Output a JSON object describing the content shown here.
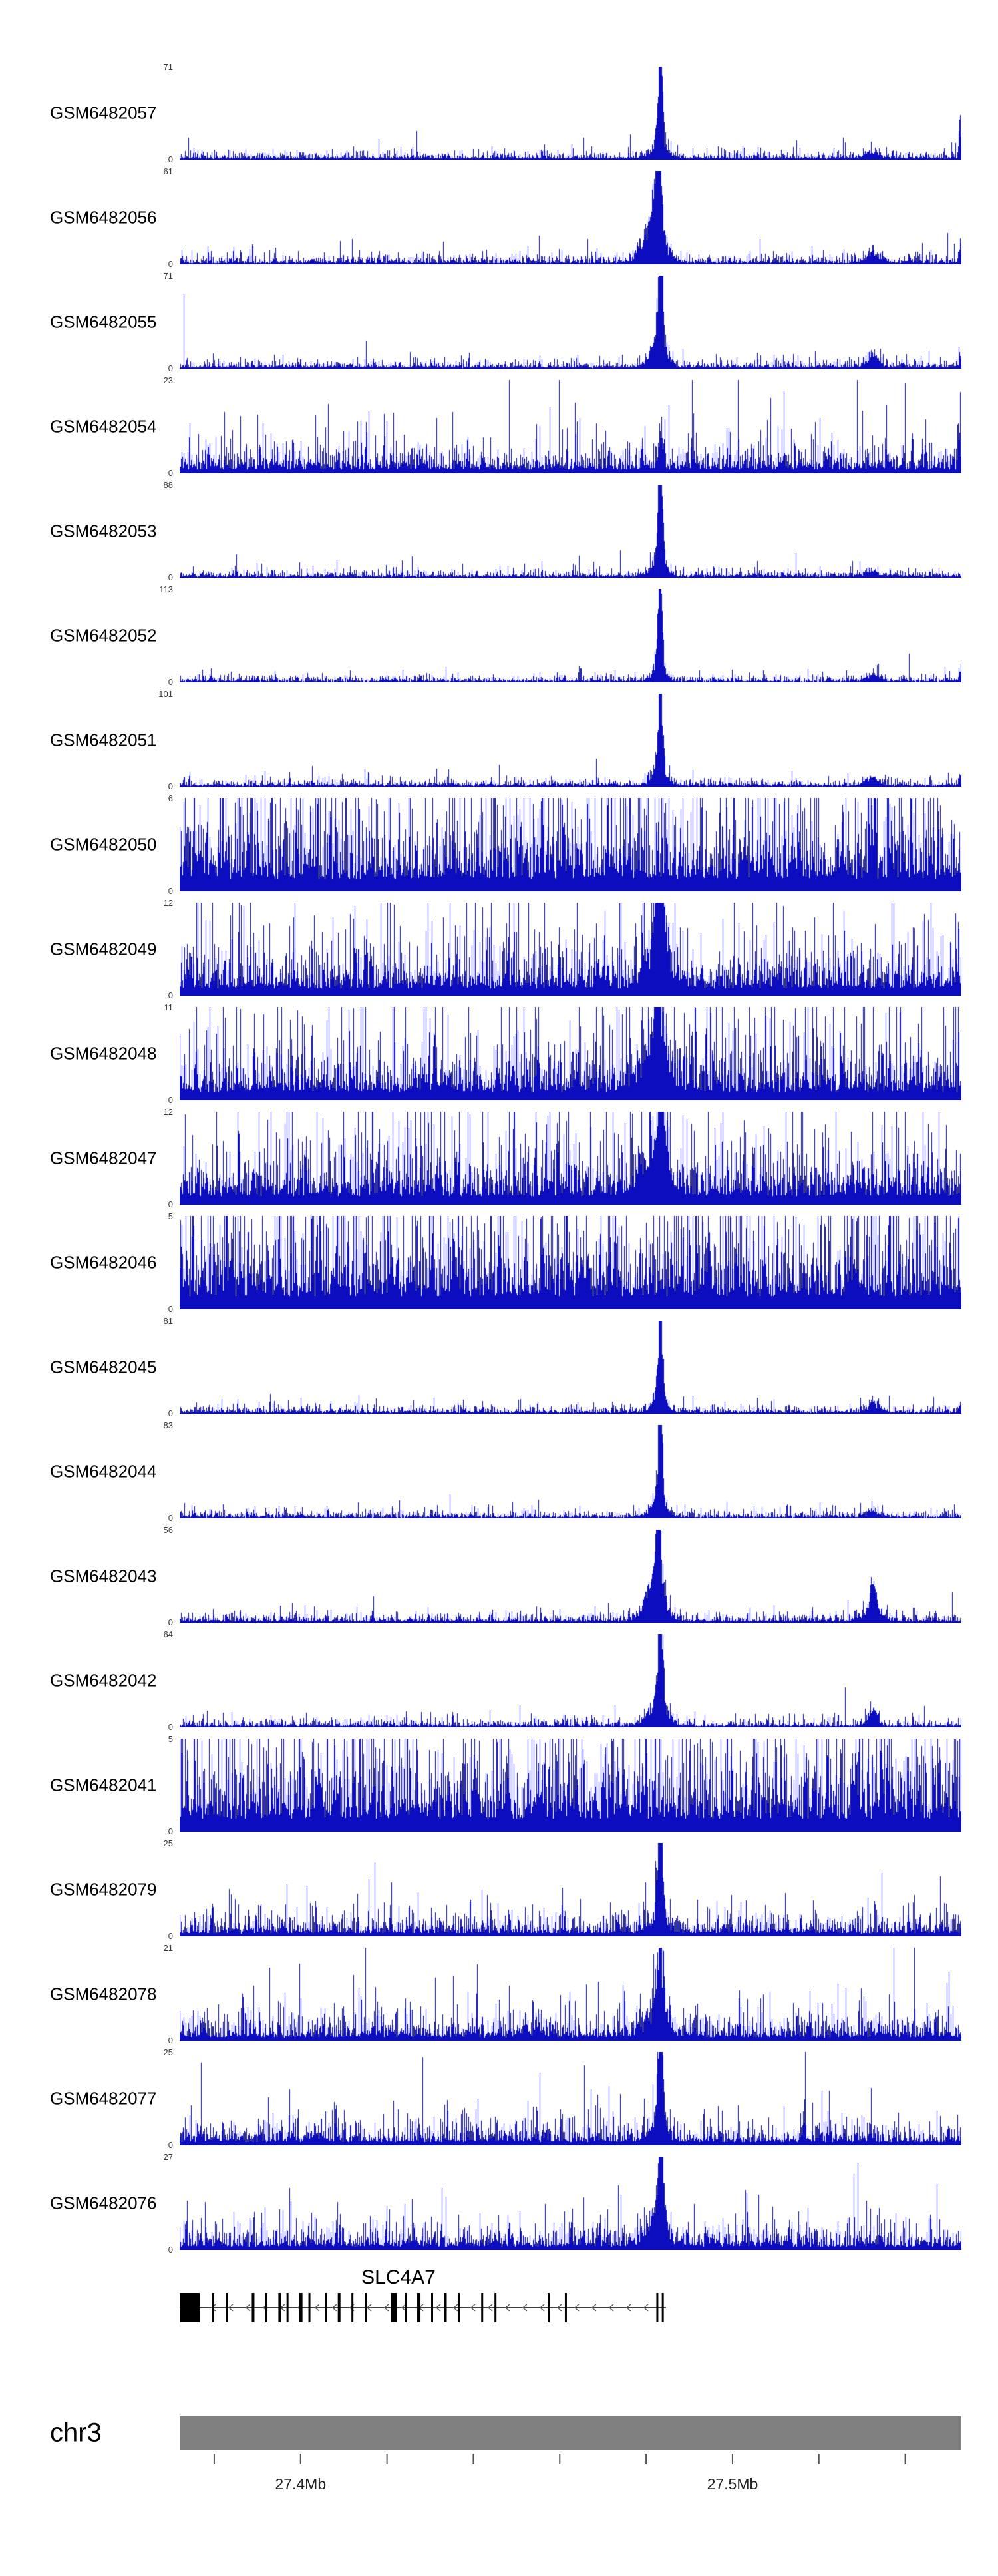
{
  "chart_data": {
    "type": "area",
    "subtype": "genome-browser-read-coverage-tracks",
    "signal_color": "#0d0dc0",
    "y_axis_zero": "0",
    "tracks": [
      {
        "label": "GSM6482057",
        "ymax": 71,
        "noise": 0.03,
        "peaks": [
          {
            "x": 0.615,
            "h": 1.0,
            "w": 0.0028
          },
          {
            "x": 0.613,
            "h": 0.18,
            "w": 0.01
          },
          {
            "x": 0.887,
            "h": 0.05,
            "w": 0.01
          },
          {
            "x": 0.9985,
            "h": 0.45,
            "w": 0.0015
          }
        ]
      },
      {
        "label": "GSM6482056",
        "ymax": 61,
        "noise": 0.035,
        "peaks": [
          {
            "x": 0.612,
            "h": 1.0,
            "w": 0.004
          },
          {
            "x": 0.606,
            "h": 0.45,
            "w": 0.013
          },
          {
            "x": 0.887,
            "h": 0.08,
            "w": 0.01
          },
          {
            "x": 0.9985,
            "h": 0.15,
            "w": 0.0015
          }
        ]
      },
      {
        "label": "GSM6482055",
        "ymax": 71,
        "noise": 0.03,
        "peaks": [
          {
            "x": 0.615,
            "h": 1.0,
            "w": 0.003
          },
          {
            "x": 0.613,
            "h": 0.28,
            "w": 0.01
          },
          {
            "x": 0.887,
            "h": 0.12,
            "w": 0.007
          },
          {
            "x": 0.9985,
            "h": 0.12,
            "w": 0.0015
          }
        ]
      },
      {
        "label": "GSM6482054",
        "ymax": 23,
        "noise": 0.115,
        "peaks": [
          {
            "x": 0.615,
            "h": 0.35,
            "w": 0.003
          },
          {
            "x": 0.9985,
            "h": 0.35,
            "w": 0.0015
          }
        ]
      },
      {
        "label": "GSM6482053",
        "ymax": 88,
        "noise": 0.028,
        "peaks": [
          {
            "x": 0.615,
            "h": 1.0,
            "w": 0.0028
          },
          {
            "x": 0.613,
            "h": 0.2,
            "w": 0.009
          },
          {
            "x": 0.887,
            "h": 0.05,
            "w": 0.008
          }
        ]
      },
      {
        "label": "GSM6482052",
        "ymax": 113,
        "noise": 0.025,
        "peaks": [
          {
            "x": 0.615,
            "h": 1.0,
            "w": 0.0026
          },
          {
            "x": 0.613,
            "h": 0.17,
            "w": 0.008
          },
          {
            "x": 0.887,
            "h": 0.06,
            "w": 0.009
          },
          {
            "x": 0.9985,
            "h": 0.1,
            "w": 0.0015
          }
        ]
      },
      {
        "label": "GSM6482051",
        "ymax": 101,
        "noise": 0.025,
        "peaks": [
          {
            "x": 0.615,
            "h": 1.0,
            "w": 0.0028
          },
          {
            "x": 0.613,
            "h": 0.19,
            "w": 0.009
          },
          {
            "x": 0.887,
            "h": 0.07,
            "w": 0.009
          },
          {
            "x": 0.9985,
            "h": 0.1,
            "w": 0.0015
          }
        ]
      },
      {
        "label": "GSM6482050",
        "ymax": 6,
        "noise": 0.38,
        "peaks": []
      },
      {
        "label": "GSM6482049",
        "ymax": 12,
        "noise": 0.22,
        "peaks": [
          {
            "x": 0.615,
            "h": 0.95,
            "w": 0.005
          },
          {
            "x": 0.61,
            "h": 0.35,
            "w": 0.014
          }
        ]
      },
      {
        "label": "GSM6482048",
        "ymax": 11,
        "noise": 0.26,
        "peaks": [
          {
            "x": 0.613,
            "h": 0.9,
            "w": 0.006
          },
          {
            "x": 0.603,
            "h": 0.3,
            "w": 0.018
          }
        ]
      },
      {
        "label": "GSM6482047",
        "ymax": 12,
        "noise": 0.26,
        "peaks": [
          {
            "x": 0.615,
            "h": 0.9,
            "w": 0.005
          },
          {
            "x": 0.605,
            "h": 0.3,
            "w": 0.018
          }
        ]
      },
      {
        "label": "GSM6482046",
        "ymax": 5,
        "noise": 0.4,
        "peaks": []
      },
      {
        "label": "GSM6482045",
        "ymax": 81,
        "noise": 0.028,
        "peaks": [
          {
            "x": 0.615,
            "h": 1.0,
            "w": 0.0028
          },
          {
            "x": 0.613,
            "h": 0.2,
            "w": 0.009
          },
          {
            "x": 0.887,
            "h": 0.1,
            "w": 0.007
          },
          {
            "x": 0.9985,
            "h": 0.08,
            "w": 0.0015
          }
        ]
      },
      {
        "label": "GSM6482044",
        "ymax": 83,
        "noise": 0.028,
        "peaks": [
          {
            "x": 0.615,
            "h": 1.0,
            "w": 0.0028
          },
          {
            "x": 0.613,
            "h": 0.2,
            "w": 0.009
          },
          {
            "x": 0.887,
            "h": 0.06,
            "w": 0.009
          }
        ]
      },
      {
        "label": "GSM6482043",
        "ymax": 56,
        "noise": 0.035,
        "peaks": [
          {
            "x": 0.613,
            "h": 1.0,
            "w": 0.0034
          },
          {
            "x": 0.608,
            "h": 0.4,
            "w": 0.012
          },
          {
            "x": 0.887,
            "h": 0.3,
            "w": 0.004
          },
          {
            "x": 0.885,
            "h": 0.1,
            "w": 0.012
          }
        ]
      },
      {
        "label": "GSM6482042",
        "ymax": 64,
        "noise": 0.032,
        "peaks": [
          {
            "x": 0.615,
            "h": 1.0,
            "w": 0.003
          },
          {
            "x": 0.612,
            "h": 0.3,
            "w": 0.011
          },
          {
            "x": 0.887,
            "h": 0.15,
            "w": 0.006
          }
        ]
      },
      {
        "label": "GSM6482041",
        "ymax": 5,
        "noise": 0.4,
        "peaks": []
      },
      {
        "label": "GSM6482079",
        "ymax": 25,
        "noise": 0.09,
        "peaks": [
          {
            "x": 0.615,
            "h": 1.0,
            "w": 0.0032
          },
          {
            "x": 0.613,
            "h": 0.15,
            "w": 0.01
          }
        ]
      },
      {
        "label": "GSM6482078",
        "ymax": 21,
        "noise": 0.11,
        "peaks": [
          {
            "x": 0.615,
            "h": 0.85,
            "w": 0.004
          },
          {
            "x": 0.61,
            "h": 0.25,
            "w": 0.012
          }
        ]
      },
      {
        "label": "GSM6482077",
        "ymax": 25,
        "noise": 0.1,
        "peaks": [
          {
            "x": 0.615,
            "h": 0.95,
            "w": 0.0032
          },
          {
            "x": 0.613,
            "h": 0.18,
            "w": 0.01
          }
        ]
      },
      {
        "label": "GSM6482076",
        "ymax": 27,
        "noise": 0.1,
        "peaks": [
          {
            "x": 0.615,
            "h": 0.9,
            "w": 0.0035
          },
          {
            "x": 0.61,
            "h": 0.25,
            "w": 0.012
          }
        ]
      }
    ],
    "gene": {
      "name": "SLC4A7",
      "strand": "-",
      "span_frac": [
        0.0,
        0.622
      ],
      "label_x_frac": 0.28,
      "exons": [
        {
          "x": 0.013,
          "w": 30
        },
        {
          "x": 0.043,
          "w": 3
        },
        {
          "x": 0.06,
          "w": 3
        },
        {
          "x": 0.094,
          "w": 4
        },
        {
          "x": 0.111,
          "w": 3
        },
        {
          "x": 0.128,
          "w": 4
        },
        {
          "x": 0.138,
          "w": 3
        },
        {
          "x": 0.155,
          "w": 5
        },
        {
          "x": 0.166,
          "w": 3
        },
        {
          "x": 0.187,
          "w": 3
        },
        {
          "x": 0.204,
          "w": 4
        },
        {
          "x": 0.221,
          "w": 3
        },
        {
          "x": 0.238,
          "w": 3
        },
        {
          "x": 0.274,
          "w": 9
        },
        {
          "x": 0.289,
          "w": 3
        },
        {
          "x": 0.306,
          "w": 5
        },
        {
          "x": 0.323,
          "w": 3
        },
        {
          "x": 0.34,
          "w": 4
        },
        {
          "x": 0.357,
          "w": 3
        },
        {
          "x": 0.387,
          "w": 3
        },
        {
          "x": 0.404,
          "w": 3
        },
        {
          "x": 0.472,
          "w": 3
        },
        {
          "x": 0.494,
          "w": 3
        },
        {
          "x": 0.611,
          "w": 3
        },
        {
          "x": 0.618,
          "w": 3
        }
      ]
    },
    "axis": {
      "chromosome": "chr3",
      "start_mb": 27.372,
      "end_mb": 27.553,
      "first_tick_mb": 27.38,
      "minor_tick_interval_mb": 0.02,
      "labeled_ticks": [
        {
          "mb": 27.4,
          "label": "27.4Mb"
        },
        {
          "mb": 27.5,
          "label": "27.5Mb"
        }
      ],
      "bar_color": "#808080"
    }
  }
}
